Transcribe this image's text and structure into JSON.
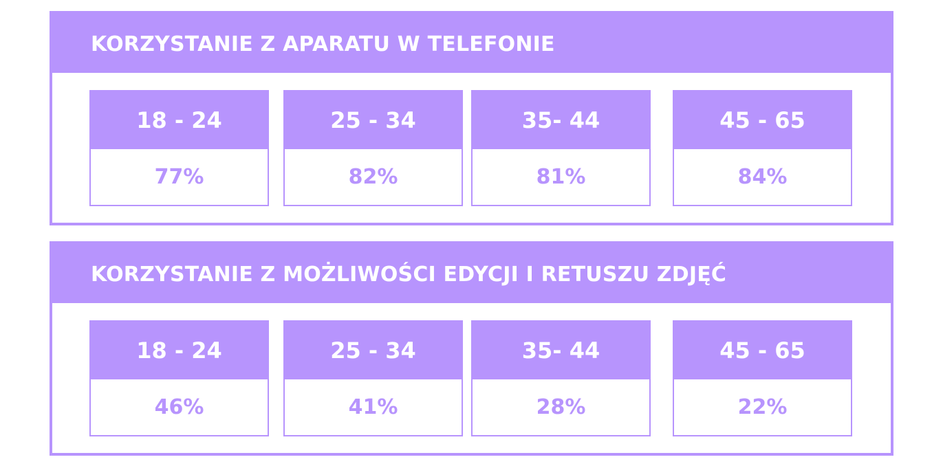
{
  "colors": {
    "accent": "#b794fd",
    "background": "#ffffff",
    "header_text": "#ffffff"
  },
  "chart_data": [
    {
      "type": "table",
      "title": "KORZYSTANIE Z APARATU W TELEFONIE",
      "categories": [
        "18 - 24",
        "25 - 34",
        "35- 44",
        "45 - 65"
      ],
      "values": [
        77,
        82,
        81,
        84
      ],
      "value_labels": [
        "77%",
        "82%",
        "81%",
        "84%"
      ],
      "unit": "%"
    },
    {
      "type": "table",
      "title": "KORZYSTANIE Z MOŻLIWOŚCI EDYCJI I RETUSZU ZDJĘĆ",
      "categories": [
        "18 - 24",
        "25 - 34",
        "35- 44",
        "45 - 65"
      ],
      "values": [
        46,
        41,
        28,
        22
      ],
      "value_labels": [
        "46%",
        "41%",
        "28%",
        "22%"
      ],
      "unit": "%"
    }
  ]
}
